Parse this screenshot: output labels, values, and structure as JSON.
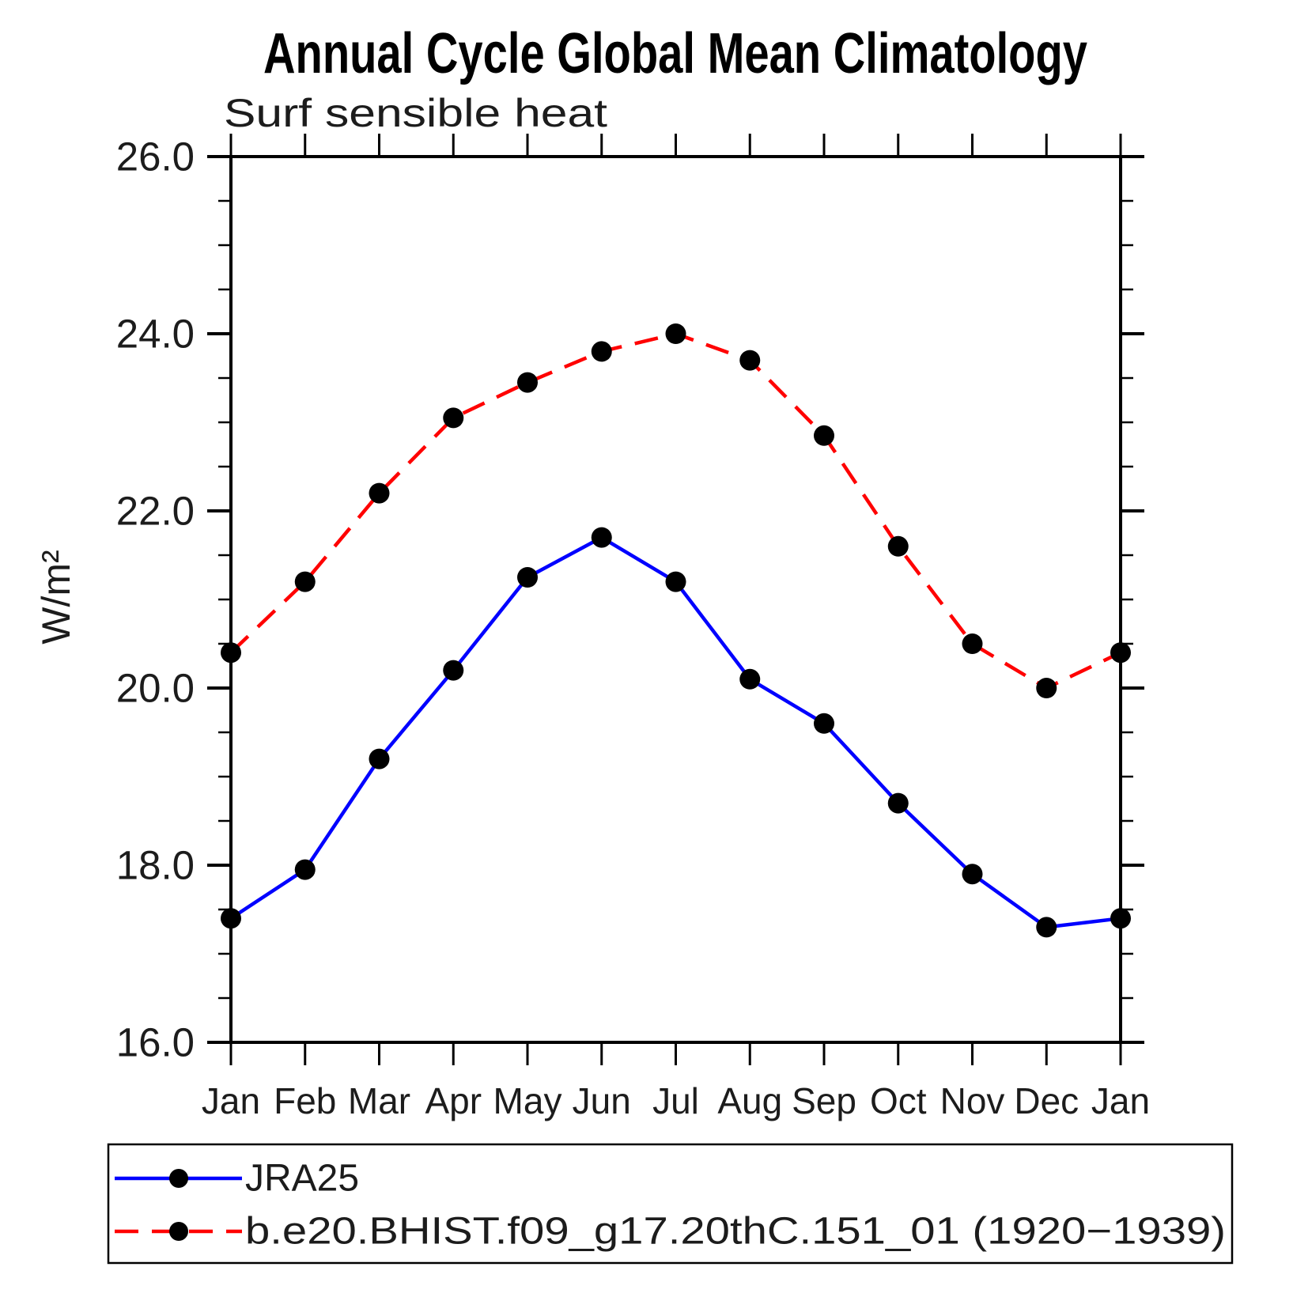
{
  "title": "Annual Cycle Global Mean Climatology",
  "subtitle": "Surf sensible heat",
  "y_axis_label": "W/m²",
  "chart_data": {
    "type": "line",
    "x_categories": [
      "Jan",
      "Feb",
      "Mar",
      "Apr",
      "May",
      "Jun",
      "Jul",
      "Aug",
      "Sep",
      "Oct",
      "Nov",
      "Dec",
      "Jan"
    ],
    "series": [
      {
        "name": "JRA25",
        "line_color": "#0000ff",
        "line_style": "solid",
        "marker": "filled-circle",
        "marker_color": "#000000",
        "values": [
          17.4,
          17.95,
          19.2,
          20.2,
          21.25,
          21.7,
          21.2,
          20.1,
          19.6,
          18.7,
          17.9,
          17.3,
          17.4
        ]
      },
      {
        "name": "b.e20.BHIST.f09_g17.20thC.151_01 (1920−1939)",
        "line_color": "#ff0000",
        "line_style": "dashed",
        "marker": "filled-circle",
        "marker_color": "#000000",
        "values": [
          20.4,
          21.2,
          22.2,
          23.05,
          23.45,
          23.8,
          24.0,
          23.7,
          22.85,
          21.6,
          20.5,
          20.0,
          20.4
        ]
      }
    ],
    "ylim": [
      16.0,
      26.0
    ],
    "y_major_ticks": [
      16.0,
      18.0,
      20.0,
      22.0,
      24.0,
      26.0
    ],
    "y_major_tick_labels": [
      "16.0",
      "18.0",
      "20.0",
      "22.0",
      "24.0",
      "26.0"
    ],
    "y_minor_tick_step": 0.5,
    "grid": false,
    "axis_color": "#000000",
    "legend_position": "bottom-left-box"
  }
}
